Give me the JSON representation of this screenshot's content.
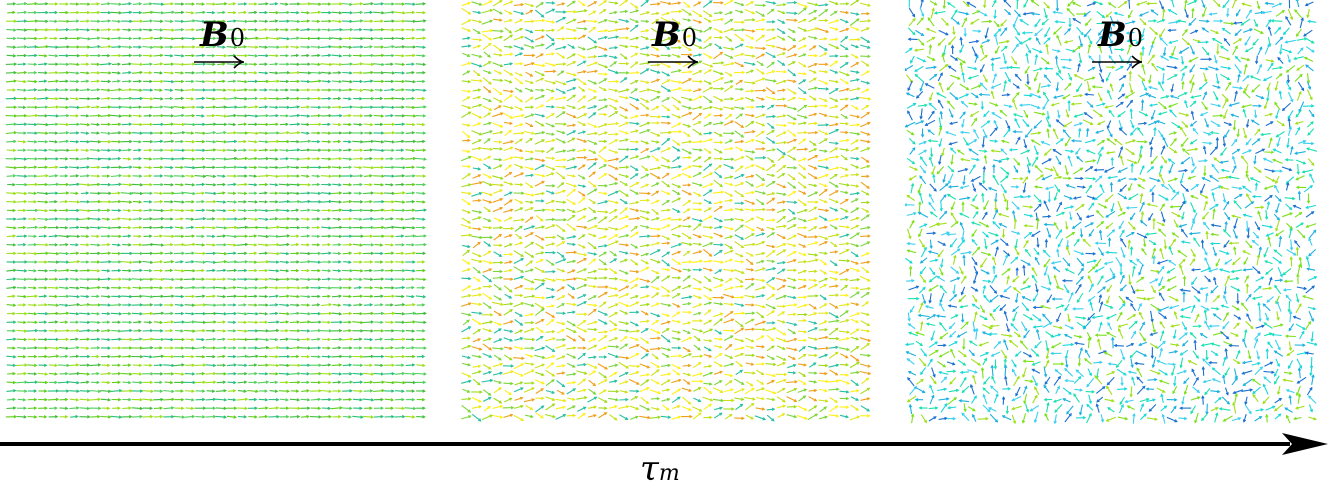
{
  "panels": [
    {
      "field_label": "B",
      "field_subscript": "0",
      "order": "aligned",
      "colors": [
        "#5ecf1c",
        "#3fbf3a",
        "#9be01a",
        "#26c07a",
        "#4fd05a"
      ]
    },
    {
      "field_label": "B",
      "field_subscript": "0",
      "order": "partial",
      "colors": [
        "#e8e81a",
        "#c8e01a",
        "#a0dc1a",
        "#fff01a",
        "#7cd63a",
        "#26c0a0",
        "#f0a01a"
      ]
    },
    {
      "field_label": "B",
      "field_subscript": "0",
      "order": "disordered",
      "colors": [
        "#1ad8d8",
        "#1ab0e0",
        "#1ae0b0",
        "#7ce01a",
        "#1a70d0",
        "#3ad0f0",
        "#a0e01a"
      ]
    }
  ],
  "axis": {
    "label": "τ",
    "label_subscript": "m"
  }
}
